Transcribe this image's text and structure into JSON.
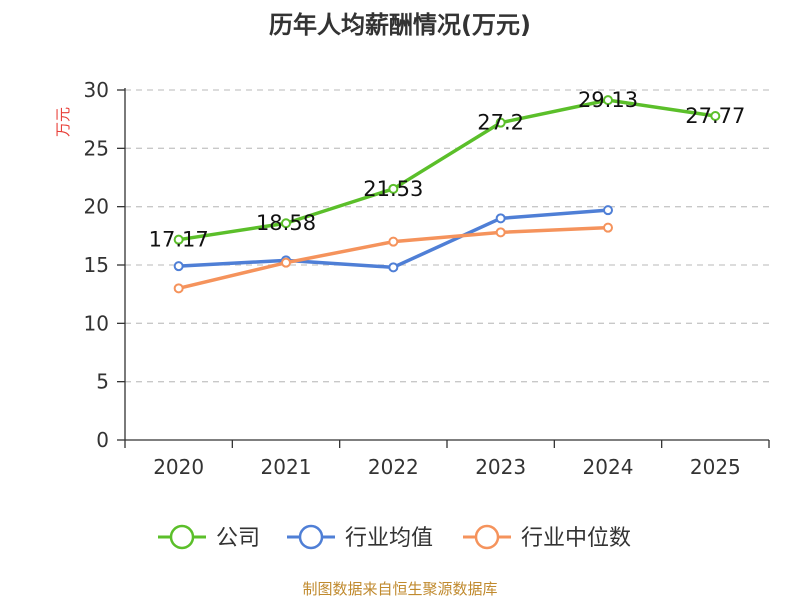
{
  "chart_data": {
    "type": "line",
    "title": "历年人均薪酬情况(万元)",
    "ylabel": "万元",
    "xlabel": "",
    "categories": [
      "2020",
      "2021",
      "2022",
      "2023",
      "2024",
      "2025"
    ],
    "ylim": [
      0,
      30
    ],
    "yticks": [
      0,
      5,
      10,
      15,
      20,
      25,
      30
    ],
    "grid": true,
    "legend_position": "bottom",
    "series": [
      {
        "name": "公司",
        "color": "#5bbf2a",
        "values": [
          17.17,
          18.58,
          21.53,
          27.2,
          29.13,
          27.77
        ],
        "labels": [
          "17.17",
          "18.58",
          "21.53",
          "27.2",
          "29.13",
          "27.77"
        ]
      },
      {
        "name": "行业均值",
        "color": "#4f7fd6",
        "values": [
          14.9,
          15.4,
          14.8,
          19.0,
          19.7,
          null
        ]
      },
      {
        "name": "行业中位数",
        "color": "#f5935c",
        "values": [
          13.0,
          15.2,
          17.0,
          17.8,
          18.2,
          null
        ]
      }
    ]
  },
  "source": "制图数据来自恒生聚源数据库"
}
